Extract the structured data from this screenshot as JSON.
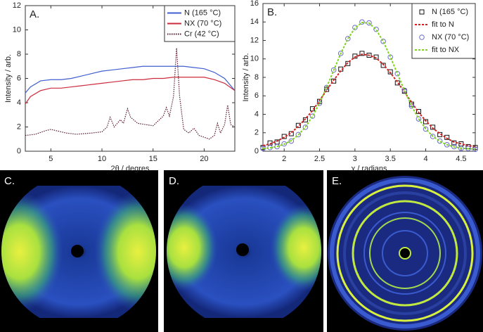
{
  "chart_data": [
    {
      "type": "line",
      "title": "A.",
      "x_label": "2θ / degres",
      "y_label": "Intensity / arb.",
      "x": [
        2.5,
        3,
        4,
        5,
        6,
        7,
        8,
        9,
        10,
        11,
        12,
        13,
        14,
        15,
        16,
        17,
        18,
        19,
        20,
        21,
        22,
        23
      ],
      "xlim": [
        2.5,
        23
      ],
      "xticks": [
        5,
        10,
        15,
        20
      ],
      "ylim": [
        0,
        12
      ],
      "yticks": [
        0,
        2,
        4,
        6,
        8,
        10,
        12
      ],
      "grid": false,
      "legend": "upper right",
      "series": [
        {
          "name": "N (165 °C)",
          "color": "#3f5fcf",
          "linestyle": "solid",
          "values": [
            4.8,
            5.3,
            5.8,
            5.9,
            5.9,
            6.0,
            6.2,
            6.4,
            6.6,
            6.7,
            6.8,
            6.9,
            7.0,
            7.0,
            7.0,
            7.0,
            7.0,
            6.9,
            6.8,
            6.5,
            6.0,
            5.0
          ]
        },
        {
          "name": "NX (70 °C)",
          "color": "#cc2b3b",
          "linestyle": "solid",
          "values": [
            3.9,
            4.5,
            5.0,
            5.2,
            5.2,
            5.3,
            5.4,
            5.5,
            5.6,
            5.7,
            5.8,
            5.9,
            5.9,
            6.0,
            6.0,
            6.1,
            6.1,
            6.1,
            6.1,
            5.9,
            5.6,
            5.0
          ]
        },
        {
          "name": "Cr (42 °C)",
          "color": "#5a1a2a",
          "linestyle": "dotted",
          "x": [
            2.5,
            3.5,
            4.5,
            5,
            5.5,
            6.5,
            7.5,
            9,
            10,
            10.5,
            10.8,
            11.2,
            11.8,
            12.1,
            12.5,
            12.8,
            13.5,
            15,
            16,
            16.3,
            16.6,
            17,
            17.3,
            17.6,
            18,
            18.5,
            19,
            19.5,
            20.5,
            21,
            21.3,
            21.6,
            22,
            22.3,
            22.6,
            23
          ],
          "values": [
            1.3,
            1.4,
            1.7,
            1.8,
            1.7,
            1.5,
            1.4,
            1.5,
            1.6,
            2.0,
            2.8,
            2.0,
            2.6,
            2.3,
            3.5,
            2.8,
            2.3,
            2.1,
            2.9,
            3.6,
            2.9,
            4.5,
            8.5,
            4.5,
            1.8,
            1.5,
            1.9,
            1.3,
            1.0,
            1.3,
            2.3,
            1.5,
            2.2,
            3.8,
            2.2,
            2.0
          ]
        }
      ]
    },
    {
      "type": "scatter",
      "title": "B.",
      "x_label": "χ / radians",
      "y_label": "Intensity / arb.",
      "x": [
        1.7,
        1.8,
        1.9,
        2.0,
        2.1,
        2.2,
        2.3,
        2.4,
        2.5,
        2.6,
        2.7,
        2.8,
        2.9,
        3.0,
        3.1,
        3.2,
        3.3,
        3.4,
        3.5,
        3.6,
        3.7,
        3.8,
        3.9,
        4.0,
        4.1,
        4.2,
        4.3,
        4.4,
        4.5,
        4.6,
        4.7
      ],
      "xlim": [
        1.7,
        4.7
      ],
      "xticks": [
        2,
        2.5,
        3,
        3.5,
        4,
        4.5
      ],
      "ylim": [
        0,
        16
      ],
      "yticks": [
        0,
        2,
        4,
        6,
        8,
        10,
        12,
        14,
        16
      ],
      "grid": false,
      "legend": "upper right",
      "series": [
        {
          "name": "N (165 °C)",
          "color": "#111111",
          "mode": "markers",
          "marker": "square",
          "values": [
            0.4,
            0.9,
            1.0,
            1.6,
            1.9,
            2.8,
            3.4,
            4.6,
            5.4,
            6.7,
            7.6,
            8.9,
            9.5,
            10.3,
            10.6,
            10.4,
            10.2,
            9.3,
            8.6,
            7.4,
            6.5,
            5.1,
            4.3,
            3.2,
            2.6,
            1.8,
            1.5,
            0.9,
            0.8,
            0.5,
            0.4
          ]
        },
        {
          "name": "fit to N",
          "color": "#d42020",
          "mode": "line",
          "linestyle": "dashed",
          "values": [
            0.6,
            0.8,
            1.1,
            1.5,
            2.0,
            2.7,
            3.5,
            4.4,
            5.5,
            6.6,
            7.7,
            8.7,
            9.6,
            10.2,
            10.5,
            10.4,
            10.1,
            9.4,
            8.5,
            7.5,
            6.4,
            5.3,
            4.2,
            3.3,
            2.5,
            1.9,
            1.4,
            1.0,
            0.8,
            0.6,
            0.5
          ]
        },
        {
          "name": "NX (70 °C)",
          "color": "#6a6ac8",
          "mode": "markers",
          "marker": "circle",
          "values": [
            0.3,
            0.4,
            0.5,
            0.8,
            1.1,
            1.8,
            2.6,
            3.8,
            5.2,
            6.9,
            8.8,
            10.6,
            12.2,
            13.4,
            14.0,
            13.9,
            13.2,
            11.9,
            10.2,
            8.4,
            6.6,
            4.9,
            3.5,
            2.4,
            1.6,
            1.1,
            0.7,
            0.5,
            0.3,
            0.3,
            0.2
          ]
        },
        {
          "name": "fit to NX",
          "color": "#7fd41f",
          "mode": "line",
          "linestyle": "dashed",
          "values": [
            0.28,
            0.36,
            0.51,
            0.76,
            1.15,
            1.76,
            2.62,
            3.77,
            5.22,
            6.92,
            8.76,
            10.58,
            12.18,
            13.35,
            13.94,
            13.88,
            13.16,
            11.88,
            10.22,
            8.39,
            6.56,
            4.91,
            3.52,
            2.42,
            1.62,
            1.06,
            0.7,
            0.47,
            0.34,
            0.27,
            0.23
          ]
        }
      ]
    }
  ],
  "images": [
    {
      "label": "C."
    },
    {
      "label": "D."
    },
    {
      "label": "E."
    }
  ]
}
